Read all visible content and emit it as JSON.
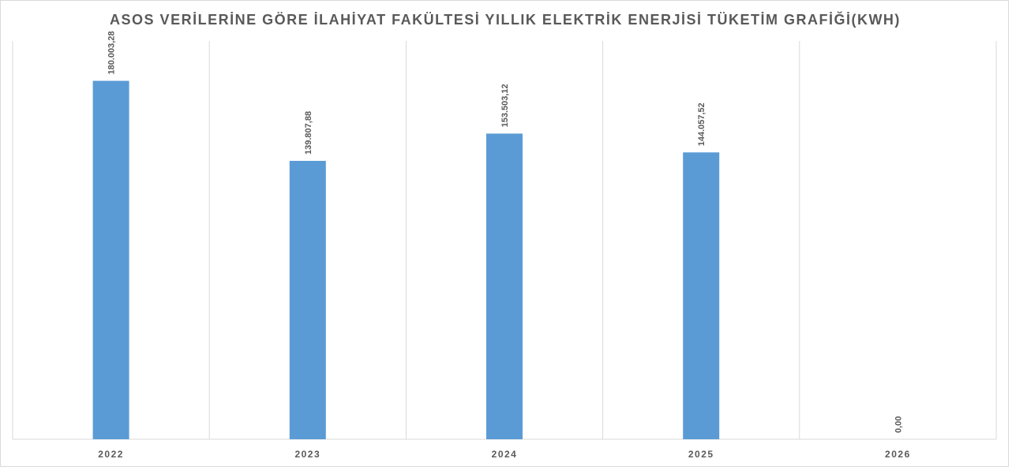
{
  "chart_data": {
    "type": "bar",
    "title": "ASOS VERİLERİNE GÖRE İLAHİYAT FAKÜLTESİ YILLIK ELEKTRİK ENERJİSİ TÜKETİM GRAFİĞİ(KWH)",
    "categories": [
      "2022",
      "2023",
      "2024",
      "2025",
      "2026"
    ],
    "values": [
      180003.28,
      139807.88,
      153503.12,
      144057.52,
      0
    ],
    "data_labels": [
      "180.003,28",
      "139.807,88",
      "153.503,12",
      "144.057,52",
      "0,00"
    ],
    "xlabel": "",
    "ylabel": "",
    "ylim": [
      0,
      200000
    ],
    "grid": "vertical category separators",
    "legend": "none",
    "bar_color": "#5b9bd5"
  }
}
